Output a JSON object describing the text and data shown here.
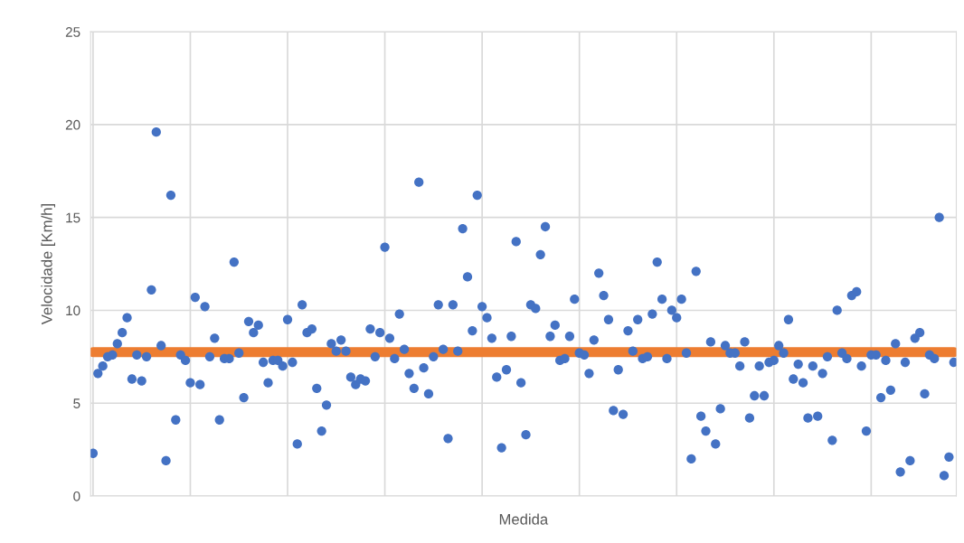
{
  "chart_data": {
    "type": "scatter",
    "xlabel": "Medida",
    "ylabel": "Velocidade [Km/h]",
    "categories": [
      null,
      null,
      null,
      null,
      null,
      null,
      null,
      null,
      null,
      null,
      null,
      null,
      null,
      null,
      null,
      null,
      null,
      null,
      null,
      null,
      null,
      null,
      null,
      null,
      null,
      null,
      null,
      null,
      null,
      null,
      null,
      null,
      null,
      null,
      null,
      null,
      null,
      null,
      null,
      null,
      null,
      null,
      null,
      null,
      null,
      null,
      null,
      null,
      null,
      null,
      null,
      null,
      null,
      null,
      null,
      null,
      null,
      null,
      null,
      null,
      null,
      null,
      null,
      null,
      null,
      null,
      null,
      null,
      null,
      null,
      null,
      null,
      null,
      null,
      null,
      null,
      null,
      null,
      null,
      null,
      null,
      null,
      null,
      null,
      null,
      null,
      null,
      null,
      null,
      null,
      null,
      null,
      null,
      null,
      null,
      null,
      null,
      null,
      null,
      null,
      null,
      null,
      null,
      null,
      null,
      null,
      null,
      null,
      null,
      null,
      null,
      null,
      null,
      null,
      null,
      null,
      null,
      null,
      null,
      null,
      null,
      null,
      null,
      null,
      null,
      null,
      null,
      null,
      null,
      null,
      null,
      null,
      null,
      null,
      null,
      null,
      null,
      null,
      null,
      null,
      null,
      null,
      null,
      null,
      null,
      null,
      null,
      null,
      null,
      null,
      null,
      null,
      null,
      null,
      null,
      null,
      null,
      null,
      null,
      null,
      null,
      null,
      null,
      null,
      null,
      null,
      null,
      null,
      null,
      null,
      null,
      null,
      null,
      null,
      null,
      null,
      null,
      null
    ],
    "series": [
      {
        "color": "#4472c4",
        "values": [
          2.3,
          6.6,
          7.0,
          7.5,
          7.6,
          8.2,
          8.8,
          9.6,
          6.3,
          7.6,
          6.2,
          7.5,
          11.1,
          19.6,
          8.1,
          1.9,
          16.2,
          4.1,
          7.6,
          7.3,
          6.1,
          10.7,
          6.0,
          10.2,
          7.5,
          8.5,
          4.1,
          7.4,
          7.4,
          12.6,
          7.7,
          5.3,
          9.4,
          8.8,
          9.2,
          7.2,
          6.1,
          7.3,
          7.3,
          7.0,
          9.5,
          7.2,
          2.8,
          10.3,
          8.8,
          9.0,
          5.8,
          3.5,
          4.9,
          8.2,
          7.8,
          8.4,
          7.8,
          6.4,
          6.0,
          6.3,
          6.2,
          9.0,
          7.5,
          8.8,
          13.4,
          8.5,
          7.4,
          9.8,
          7.9,
          6.6,
          5.8,
          16.9,
          6.9,
          5.5,
          7.5,
          10.3,
          7.9,
          3.1,
          10.3,
          7.8,
          14.4,
          11.8,
          8.9,
          16.2,
          10.2,
          9.6,
          8.5,
          6.4,
          2.6,
          6.8,
          8.6,
          13.7,
          6.1,
          3.3,
          10.3,
          10.1,
          13.0,
          14.5,
          8.6,
          9.2,
          7.3,
          7.4,
          8.6,
          10.6,
          7.7,
          7.6,
          6.6,
          8.4,
          12.0,
          10.8,
          9.5,
          4.6,
          6.8,
          4.4,
          8.9,
          7.8,
          9.5,
          7.4,
          7.5,
          9.8,
          12.6,
          10.6,
          7.4,
          10.0,
          9.6,
          10.6,
          7.7,
          2.0,
          12.1,
          4.3,
          3.5,
          8.3,
          2.8,
          4.7,
          8.1,
          7.7,
          7.7,
          7.0,
          8.3,
          4.2,
          5.4,
          7.0,
          5.4,
          7.2,
          7.3,
          8.1,
          7.7,
          9.5,
          6.3,
          7.1,
          6.1,
          4.2,
          7.0,
          4.3,
          6.6,
          7.5,
          3.0,
          10.0,
          7.7,
          7.4,
          10.8,
          11.0,
          7.0,
          3.5,
          7.6,
          7.6,
          5.3,
          7.3,
          5.7,
          8.2,
          1.3,
          7.2,
          1.9,
          8.5,
          8.8,
          5.5,
          7.6,
          7.4,
          15.0,
          1.1,
          2.1,
          7.2
        ]
      }
    ],
    "ref_lines": [
      {
        "axis": "y",
        "value": 7.75,
        "color": "#ed7d31",
        "line_style": "solid"
      }
    ],
    "marker": "circle",
    "ylim": [
      0,
      25
    ],
    "yticks": [
      0,
      5,
      10,
      15,
      20,
      25
    ],
    "tick_labels": "y",
    "grid": true
  }
}
